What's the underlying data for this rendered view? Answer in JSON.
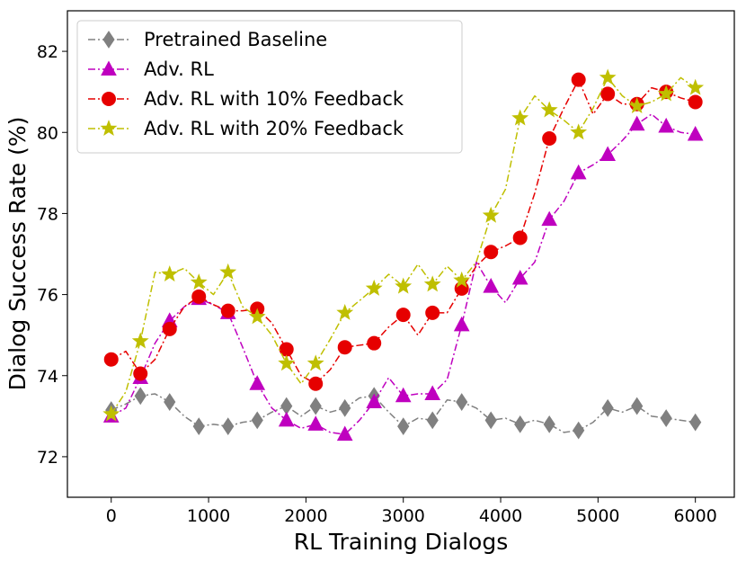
{
  "chart_data": {
    "type": "line",
    "title": "",
    "xlabel": "RL Training Dialogs",
    "ylabel": "Dialog Success Rate (%)",
    "xlim": [
      -450,
      6400
    ],
    "ylim": [
      71.0,
      83.0
    ],
    "xticks": [
      0,
      1000,
      2000,
      3000,
      4000,
      5000,
      6000
    ],
    "yticks": [
      72,
      74,
      76,
      78,
      80,
      82
    ],
    "grid": false,
    "legend_position": "top-left",
    "series": [
      {
        "name": "Pretrained Baseline",
        "color": "#808080",
        "marker": "diamond",
        "linestyle": "dash-dot",
        "marker_x": [
          0,
          300,
          600,
          900,
          1200,
          1500,
          1800,
          2100,
          2400,
          2700,
          3000,
          3300,
          3600,
          3900,
          4200,
          4500,
          4800,
          5100,
          5400,
          5700,
          6000
        ],
        "marker_y": [
          73.15,
          73.5,
          73.35,
          72.75,
          72.75,
          72.9,
          73.25,
          73.25,
          73.2,
          73.5,
          72.75,
          72.9,
          73.35,
          72.9,
          72.8,
          72.8,
          72.65,
          73.2,
          73.25,
          72.95,
          72.85
        ],
        "line_x": [
          0,
          150,
          300,
          450,
          600,
          750,
          900,
          1050,
          1200,
          1350,
          1500,
          1650,
          1800,
          1950,
          2100,
          2250,
          2400,
          2550,
          2700,
          2850,
          3000,
          3150,
          3300,
          3450,
          3600,
          3750,
          3900,
          4050,
          4200,
          4350,
          4500,
          4650,
          4800,
          4950,
          5100,
          5250,
          5400,
          5550,
          5700,
          5850,
          6000
        ],
        "line_y": [
          73.15,
          73.3,
          73.5,
          73.55,
          73.35,
          73.0,
          72.75,
          72.8,
          72.75,
          72.85,
          72.9,
          73.1,
          73.25,
          73.0,
          73.25,
          73.1,
          73.2,
          73.45,
          73.5,
          73.1,
          72.75,
          72.95,
          72.9,
          73.4,
          73.35,
          73.2,
          72.9,
          72.95,
          72.8,
          72.9,
          72.8,
          72.6,
          72.65,
          72.85,
          73.2,
          73.1,
          73.25,
          73.0,
          72.95,
          72.9,
          72.85
        ]
      },
      {
        "name": "Adv. RL",
        "color": "#bf00bf",
        "marker": "triangle",
        "linestyle": "dash-dot",
        "marker_x": [
          0,
          300,
          600,
          900,
          1200,
          1500,
          1800,
          2100,
          2400,
          2700,
          3000,
          3300,
          3600,
          3900,
          4200,
          4500,
          4800,
          5100,
          5400,
          5700,
          6000
        ],
        "marker_y": [
          73.0,
          73.95,
          75.35,
          75.9,
          75.55,
          73.8,
          72.9,
          72.8,
          72.55,
          73.35,
          73.5,
          73.55,
          75.25,
          76.2,
          76.4,
          77.85,
          79.0,
          79.45,
          80.2,
          80.15,
          79.95
        ],
        "line_x": [
          0,
          150,
          300,
          450,
          600,
          750,
          900,
          1050,
          1200,
          1350,
          1500,
          1650,
          1800,
          1950,
          2100,
          2250,
          2400,
          2550,
          2700,
          2850,
          3000,
          3150,
          3300,
          3450,
          3600,
          3750,
          3900,
          4050,
          4200,
          4350,
          4500,
          4650,
          4800,
          4950,
          5100,
          5250,
          5400,
          5550,
          5700,
          5850,
          6000
        ],
        "line_y": [
          73.0,
          73.2,
          73.95,
          74.8,
          75.35,
          75.7,
          75.9,
          75.75,
          75.55,
          74.7,
          73.8,
          73.2,
          72.9,
          72.7,
          72.8,
          72.6,
          72.55,
          72.9,
          73.35,
          73.95,
          73.5,
          73.55,
          73.55,
          73.9,
          75.25,
          76.8,
          76.2,
          75.8,
          76.4,
          76.8,
          77.85,
          78.3,
          79.0,
          79.2,
          79.45,
          79.8,
          80.2,
          80.45,
          80.15,
          80.0,
          79.95
        ]
      },
      {
        "name": "Adv. RL with 10% Feedback",
        "color": "#e60000",
        "marker": "circle",
        "linestyle": "dash-dot",
        "marker_x": [
          0,
          300,
          600,
          900,
          1200,
          1500,
          1800,
          2100,
          2400,
          2700,
          3000,
          3300,
          3600,
          3900,
          4200,
          4500,
          4800,
          5100,
          5400,
          5700,
          6000
        ],
        "marker_y": [
          74.4,
          74.05,
          75.15,
          75.95,
          75.6,
          75.65,
          74.65,
          73.8,
          74.7,
          74.8,
          75.5,
          75.55,
          76.15,
          77.05,
          77.4,
          79.85,
          81.3,
          80.95,
          80.7,
          81.0,
          80.75
        ],
        "line_x": [
          0,
          150,
          300,
          450,
          600,
          750,
          900,
          1050,
          1200,
          1350,
          1500,
          1650,
          1800,
          1950,
          2100,
          2250,
          2400,
          2550,
          2700,
          2850,
          3000,
          3150,
          3300,
          3450,
          3600,
          3750,
          3900,
          4050,
          4200,
          4350,
          4500,
          4650,
          4800,
          4950,
          5100,
          5250,
          5400,
          5550,
          5700,
          5850,
          6000
        ],
        "line_y": [
          74.4,
          74.6,
          74.05,
          74.4,
          75.15,
          75.7,
          75.95,
          75.75,
          75.6,
          75.6,
          75.65,
          75.3,
          74.65,
          74.0,
          73.8,
          74.15,
          74.7,
          74.75,
          74.8,
          75.2,
          75.5,
          75.0,
          75.55,
          75.55,
          76.15,
          76.7,
          77.05,
          77.2,
          77.4,
          78.5,
          79.85,
          80.6,
          81.3,
          80.45,
          80.95,
          80.7,
          80.7,
          81.1,
          81.0,
          80.85,
          80.75
        ]
      },
      {
        "name": "Adv. RL with 20% Feedback",
        "color": "#bfbf00",
        "marker": "star",
        "linestyle": "dash-dot",
        "marker_x": [
          0,
          300,
          600,
          900,
          1200,
          1500,
          1800,
          2100,
          2400,
          2700,
          3000,
          3300,
          3600,
          3900,
          4200,
          4500,
          4800,
          5100,
          5400,
          5700,
          6000
        ],
        "marker_y": [
          73.05,
          74.85,
          76.5,
          76.3,
          76.55,
          75.45,
          74.3,
          74.3,
          75.55,
          76.15,
          76.2,
          76.25,
          76.35,
          77.95,
          80.35,
          80.55,
          80.0,
          81.35,
          80.65,
          80.95,
          81.1
        ],
        "line_x": [
          0,
          150,
          300,
          450,
          600,
          750,
          900,
          1050,
          1200,
          1350,
          1500,
          1650,
          1800,
          1950,
          2100,
          2250,
          2400,
          2550,
          2700,
          2850,
          3000,
          3150,
          3300,
          3450,
          3600,
          3750,
          3900,
          4050,
          4200,
          4350,
          4500,
          4650,
          4800,
          4950,
          5100,
          5250,
          5400,
          5550,
          5700,
          5850,
          6000
        ],
        "line_y": [
          73.05,
          73.6,
          74.85,
          76.55,
          76.5,
          76.65,
          76.3,
          76.0,
          76.55,
          75.7,
          75.45,
          75.0,
          74.3,
          73.8,
          74.3,
          74.9,
          75.55,
          75.85,
          76.15,
          76.5,
          76.2,
          76.75,
          76.25,
          76.7,
          76.35,
          76.8,
          77.95,
          78.6,
          80.35,
          80.9,
          80.55,
          80.3,
          80.0,
          80.6,
          81.35,
          80.9,
          80.65,
          80.75,
          80.95,
          81.35,
          81.1
        ]
      }
    ]
  }
}
